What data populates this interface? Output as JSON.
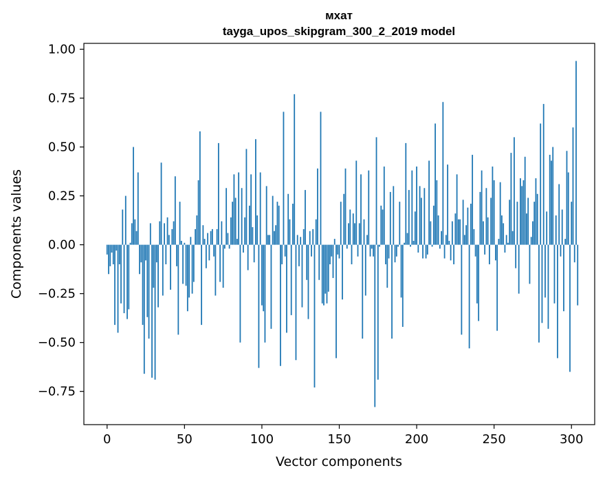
{
  "chart_data": {
    "type": "bar",
    "title": "мхат",
    "subtitle": "tayga_upos_skipgram_300_2_2019 model",
    "xlabel": "Vector components",
    "ylabel": "Components values",
    "xlim": [
      -15,
      315
    ],
    "ylim": [
      -0.92,
      1.03
    ],
    "xticks": [
      0,
      50,
      100,
      150,
      200,
      250,
      300
    ],
    "xtick_labels": [
      "0",
      "50",
      "100",
      "150",
      "200",
      "250",
      "300"
    ],
    "yticks": [
      1.0,
      0.75,
      0.5,
      0.25,
      0.0,
      -0.25,
      -0.5,
      -0.75
    ],
    "ytick_labels": [
      "1.00",
      "0.75",
      "0.50",
      "0.25",
      "0.00",
      "−0.25",
      "−0.50",
      "−0.75"
    ],
    "grid": false,
    "bar_color": "#1f77b4",
    "values": [
      -0.05,
      -0.15,
      -0.11,
      -0.04,
      -0.1,
      -0.41,
      -0.03,
      -0.45,
      -0.1,
      -0.3,
      0.18,
      -0.35,
      0.25,
      -0.38,
      -0.33,
      0.01,
      0.11,
      0.5,
      0.13,
      0.07,
      0.37,
      -0.15,
      -0.09,
      -0.41,
      -0.66,
      -0.08,
      -0.37,
      -0.48,
      0.11,
      -0.68,
      -0.22,
      -0.69,
      -0.09,
      -0.32,
      0.12,
      0.42,
      -0.26,
      0.11,
      -0.1,
      0.14,
      0.05,
      -0.23,
      0.08,
      0.12,
      0.35,
      -0.11,
      -0.46,
      0.22,
      0.02,
      -0.2,
      0.01,
      -0.21,
      -0.34,
      -0.27,
      0.04,
      -0.25,
      -0.19,
      0.08,
      0.15,
      0.33,
      0.58,
      -0.41,
      0.1,
      0.03,
      -0.12,
      0.06,
      -0.08,
      0.07,
      0.08,
      -0.06,
      -0.26,
      0.08,
      0.52,
      -0.19,
      0.12,
      -0.22,
      -0.02,
      0.29,
      0.06,
      -0.02,
      0.14,
      0.22,
      0.36,
      0.24,
      0.03,
      0.37,
      -0.5,
      0.29,
      -0.04,
      0.14,
      0.49,
      -0.13,
      0.2,
      0.36,
      0.09,
      -0.09,
      0.54,
      0.15,
      -0.63,
      0.37,
      -0.31,
      -0.34,
      -0.5,
      0.3,
      0.05,
      0.05,
      -0.43,
      0.25,
      0.07,
      0.1,
      0.22,
      0.2,
      -0.62,
      -0.1,
      0.68,
      -0.06,
      -0.45,
      0.26,
      0.13,
      -0.36,
      0.21,
      0.77,
      -0.59,
      0.05,
      -0.11,
      0.04,
      -0.32,
      0.08,
      0.28,
      -0.18,
      -0.38,
      0.07,
      -0.06,
      0.08,
      -0.73,
      0.13,
      0.39,
      -0.18,
      0.68,
      -0.3,
      -0.31,
      -0.25,
      -0.3,
      -0.24,
      -0.1,
      -0.06,
      -0.17,
      0.03,
      -0.58,
      -0.05,
      -0.07,
      0.22,
      -0.28,
      0.26,
      0.39,
      -0.02,
      0.11,
      0.18,
      -0.1,
      0.16,
      0.11,
      0.43,
      -0.06,
      0.11,
      0.36,
      -0.48,
      0.13,
      -0.26,
      0.05,
      0.38,
      -0.06,
      -0.02,
      -0.06,
      -0.83,
      0.55,
      -0.69,
      -0.01,
      0.2,
      0.18,
      0.4,
      -0.1,
      -0.22,
      -0.07,
      0.27,
      -0.48,
      0.3,
      -0.09,
      -0.06,
      -0.01,
      0.22,
      -0.27,
      -0.42,
      0.01,
      0.52,
      0.06,
      0.28,
      -0.01,
      0.38,
      0.02,
      0.17,
      0.4,
      -0.04,
      0.3,
      0.24,
      -0.07,
      0.29,
      -0.07,
      -0.05,
      0.43,
      0.12,
      -0.01,
      0.2,
      0.62,
      0.33,
      0.15,
      -0.02,
      0.07,
      0.73,
      -0.07,
      0.05,
      0.41,
      0.02,
      -0.08,
      0.12,
      -0.1,
      0.16,
      0.36,
      0.13,
      0.13,
      -0.46,
      0.23,
      0.05,
      0.1,
      0.19,
      -0.53,
      0.21,
      0.46,
      0.08,
      -0.06,
      -0.3,
      -0.39,
      0.27,
      0.38,
      0.12,
      -0.05,
      0.29,
      0.14,
      -0.1,
      0.24,
      0.4,
      0.33,
      -0.08,
      -0.44,
      0.03,
      0.32,
      0.15,
      0.11,
      -0.04,
      0.05,
      0.01,
      0.23,
      0.47,
      0.07,
      0.55,
      -0.12,
      0.22,
      -0.25,
      0.34,
      0.3,
      0.33,
      0.45,
      0.16,
      0.24,
      -0.2,
      0.04,
      0.12,
      0.22,
      0.34,
      0.26,
      -0.5,
      0.62,
      -0.4,
      0.72,
      -0.27,
      0.17,
      -0.43,
      0.46,
      0.43,
      0.5,
      -0.3,
      0.15,
      -0.58,
      0.31,
      -0.06,
      0.18,
      -0.34,
      0.03,
      0.48,
      0.37,
      -0.65,
      0.22,
      0.6,
      -0.09,
      0.94,
      -0.31
    ]
  }
}
